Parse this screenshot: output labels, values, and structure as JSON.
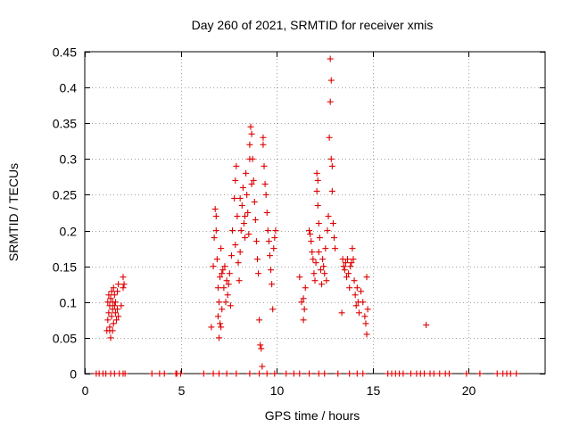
{
  "chart_data": {
    "type": "scatter",
    "title": "Day 260 of 2021, SRMTID for receiver xmis",
    "xlabel": "GPS time / hours",
    "ylabel": "SRMTID / TECUs",
    "xlim": [
      0,
      24
    ],
    "ylim": [
      0,
      0.45
    ],
    "xticks": [
      0,
      5,
      10,
      15,
      20
    ],
    "yticks": [
      0,
      0.05,
      0.1,
      0.15,
      0.2,
      0.25,
      0.3,
      0.35,
      0.4,
      0.45
    ],
    "xtick_labels": [
      "0",
      "5",
      "10",
      "15",
      "20"
    ],
    "ytick_labels": [
      "0",
      "0.05",
      "0.1",
      "0.15",
      "0.2",
      "0.25",
      "0.3",
      "0.35",
      "0.4",
      "0.45"
    ],
    "grid": true,
    "marker": "+",
    "color": "#dd0000",
    "series": [
      {
        "name": "SRMTID",
        "points": [
          [
            0.6,
            0
          ],
          [
            0.75,
            0
          ],
          [
            0.95,
            0
          ],
          [
            1.1,
            0
          ],
          [
            1.35,
            0
          ],
          [
            1.55,
            0
          ],
          [
            1.8,
            0
          ],
          [
            2.0,
            0
          ],
          [
            2.1,
            0
          ],
          [
            3.5,
            0
          ],
          [
            3.9,
            0
          ],
          [
            4.15,
            0
          ],
          [
            4.75,
            0
          ],
          [
            4.8,
            0
          ],
          [
            5.0,
            0
          ],
          [
            6.2,
            0
          ],
          [
            6.7,
            0
          ],
          [
            7.0,
            0
          ],
          [
            7.4,
            0
          ],
          [
            7.9,
            0
          ],
          [
            8.6,
            0
          ],
          [
            9.1,
            0
          ],
          [
            9.5,
            0
          ],
          [
            9.9,
            0
          ],
          [
            10.5,
            0
          ],
          [
            10.9,
            0
          ],
          [
            11.2,
            0
          ],
          [
            11.7,
            0
          ],
          [
            12.2,
            0
          ],
          [
            12.5,
            0
          ],
          [
            13.2,
            0
          ],
          [
            13.8,
            0
          ],
          [
            14.2,
            0
          ],
          [
            14.5,
            0
          ],
          [
            15.8,
            0
          ],
          [
            16.0,
            0
          ],
          [
            16.2,
            0
          ],
          [
            16.4,
            0
          ],
          [
            16.6,
            0
          ],
          [
            17.0,
            0
          ],
          [
            17.3,
            0
          ],
          [
            17.5,
            0
          ],
          [
            17.7,
            0
          ],
          [
            18.0,
            0
          ],
          [
            18.2,
            0
          ],
          [
            18.5,
            0
          ],
          [
            18.8,
            0
          ],
          [
            19.0,
            0
          ],
          [
            19.9,
            0
          ],
          [
            20.6,
            0
          ],
          [
            21.5,
            0
          ],
          [
            21.8,
            0
          ],
          [
            22.0,
            0
          ],
          [
            22.2,
            0
          ],
          [
            22.5,
            0
          ],
          [
            1.15,
            0.06
          ],
          [
            1.2,
            0.075
          ],
          [
            1.2,
            0.1
          ],
          [
            1.25,
            0.085
          ],
          [
            1.25,
            0.11
          ],
          [
            1.3,
            0.065
          ],
          [
            1.3,
            0.095
          ],
          [
            1.35,
            0.05
          ],
          [
            1.35,
            0.105
          ],
          [
            1.4,
            0.08
          ],
          [
            1.4,
            0.115
          ],
          [
            1.45,
            0.09
          ],
          [
            1.45,
            0.1
          ],
          [
            1.5,
            0.07
          ],
          [
            1.5,
            0.12
          ],
          [
            1.55,
            0.095
          ],
          [
            1.55,
            0.11
          ],
          [
            1.6,
            0.085
          ],
          [
            1.6,
            0.1
          ],
          [
            1.65,
            0.075
          ],
          [
            1.7,
            0.09
          ],
          [
            1.7,
            0.115
          ],
          [
            1.75,
            0.125
          ],
          [
            1.75,
            0.08
          ],
          [
            1.9,
            0.095
          ],
          [
            2.0,
            0.12
          ],
          [
            2.0,
            0.135
          ],
          [
            2.05,
            0.125
          ],
          [
            1.3,
            0.06
          ],
          [
            1.45,
            0.06
          ],
          [
            6.6,
            0.065
          ],
          [
            6.7,
            0.15
          ],
          [
            6.75,
            0.19
          ],
          [
            6.8,
            0.23
          ],
          [
            6.85,
            0.22
          ],
          [
            6.85,
            0.2
          ],
          [
            6.9,
            0.16
          ],
          [
            6.95,
            0.12
          ],
          [
            6.95,
            0.08
          ],
          [
            7.0,
            0.05
          ],
          [
            7.0,
            0.1
          ],
          [
            7.05,
            0.07
          ],
          [
            7.05,
            0.135
          ],
          [
            7.1,
            0.065
          ],
          [
            7.1,
            0.175
          ],
          [
            7.15,
            0.14
          ],
          [
            7.15,
            0.09
          ],
          [
            7.2,
            0.145
          ],
          [
            7.25,
            0.12
          ],
          [
            7.3,
            0.15
          ],
          [
            7.35,
            0.1
          ],
          [
            7.4,
            0.13
          ],
          [
            7.45,
            0.11
          ],
          [
            7.5,
            0.125
          ],
          [
            7.55,
            0.14
          ],
          [
            7.6,
            0.095
          ],
          [
            7.65,
            0.165
          ],
          [
            7.7,
            0.2
          ],
          [
            7.8,
            0.245
          ],
          [
            7.85,
            0.27
          ],
          [
            7.9,
            0.29
          ],
          [
            7.95,
            0.22
          ],
          [
            8.0,
            0.155
          ],
          [
            8.05,
            0.13
          ],
          [
            8.1,
            0.17
          ],
          [
            8.15,
            0.2
          ],
          [
            8.2,
            0.235
          ],
          [
            8.25,
            0.26
          ],
          [
            8.3,
            0.21
          ],
          [
            8.35,
            0.19
          ],
          [
            8.4,
            0.28
          ],
          [
            8.45,
            0.25
          ],
          [
            8.5,
            0.225
          ],
          [
            8.55,
            0.195
          ],
          [
            8.6,
            0.32
          ],
          [
            8.65,
            0.345
          ],
          [
            8.7,
            0.335
          ],
          [
            8.7,
            0.265
          ],
          [
            8.75,
            0.3
          ],
          [
            8.8,
            0.27
          ],
          [
            8.85,
            0.24
          ],
          [
            8.9,
            0.215
          ],
          [
            8.95,
            0.185
          ],
          [
            9.0,
            0.16
          ],
          [
            9.05,
            0.14
          ],
          [
            9.1,
            0.075
          ],
          [
            9.15,
            0.04
          ],
          [
            9.2,
            0.035
          ],
          [
            9.25,
            0.01
          ],
          [
            9.3,
            0.33
          ],
          [
            9.35,
            0.29
          ],
          [
            9.4,
            0.265
          ],
          [
            9.45,
            0.25
          ],
          [
            9.5,
            0.225
          ],
          [
            9.55,
            0.2
          ],
          [
            9.6,
            0.185
          ],
          [
            9.65,
            0.165
          ],
          [
            9.7,
            0.145
          ],
          [
            9.75,
            0.125
          ],
          [
            9.8,
            0.09
          ],
          [
            9.85,
            0.175
          ],
          [
            9.9,
            0.19
          ],
          [
            9.95,
            0.2
          ],
          [
            9.3,
            0.32
          ],
          [
            8.6,
            0.3
          ],
          [
            8.35,
            0.22
          ],
          [
            8.1,
            0.245
          ],
          [
            7.85,
            0.18
          ],
          [
            11.2,
            0.135
          ],
          [
            11.3,
            0.1
          ],
          [
            11.4,
            0.105
          ],
          [
            11.4,
            0.075
          ],
          [
            11.45,
            0.09
          ],
          [
            11.5,
            0.12
          ],
          [
            11.7,
            0.2
          ],
          [
            11.75,
            0.195
          ],
          [
            11.8,
            0.185
          ],
          [
            11.85,
            0.17
          ],
          [
            11.9,
            0.16
          ],
          [
            11.95,
            0.14
          ],
          [
            12.0,
            0.13
          ],
          [
            12.05,
            0.155
          ],
          [
            12.1,
            0.255
          ],
          [
            12.15,
            0.235
          ],
          [
            12.2,
            0.21
          ],
          [
            12.2,
            0.17
          ],
          [
            12.25,
            0.19
          ],
          [
            12.3,
            0.145
          ],
          [
            12.35,
            0.125
          ],
          [
            12.4,
            0.16
          ],
          [
            12.45,
            0.15
          ],
          [
            12.5,
            0.14
          ],
          [
            12.55,
            0.175
          ],
          [
            12.6,
            0.13
          ],
          [
            12.65,
            0.2
          ],
          [
            12.7,
            0.22
          ],
          [
            12.75,
            0.33
          ],
          [
            12.8,
            0.38
          ],
          [
            12.8,
            0.44
          ],
          [
            12.85,
            0.41
          ],
          [
            12.85,
            0.3
          ],
          [
            12.9,
            0.29
          ],
          [
            12.9,
            0.255
          ],
          [
            12.95,
            0.21
          ],
          [
            13.0,
            0.19
          ],
          [
            13.05,
            0.175
          ],
          [
            12.1,
            0.28
          ],
          [
            12.15,
            0.27
          ],
          [
            13.4,
            0.085
          ],
          [
            13.45,
            0.16
          ],
          [
            13.5,
            0.15
          ],
          [
            13.55,
            0.145
          ],
          [
            13.6,
            0.155
          ],
          [
            13.65,
            0.135
          ],
          [
            13.7,
            0.16
          ],
          [
            13.75,
            0.14
          ],
          [
            13.8,
            0.12
          ],
          [
            13.85,
            0.15
          ],
          [
            13.9,
            0.155
          ],
          [
            13.95,
            0.175
          ],
          [
            14.0,
            0.16
          ],
          [
            14.05,
            0.13
          ],
          [
            14.1,
            0.11
          ],
          [
            14.15,
            0.095
          ],
          [
            14.2,
            0.12
          ],
          [
            14.25,
            0.1
          ],
          [
            14.3,
            0.085
          ],
          [
            14.4,
            0.115
          ],
          [
            14.5,
            0.1
          ],
          [
            14.6,
            0.08
          ],
          [
            14.65,
            0.07
          ],
          [
            14.7,
            0.055
          ],
          [
            14.75,
            0.09
          ],
          [
            14.7,
            0.135
          ],
          [
            17.8,
            0.068
          ]
        ]
      }
    ]
  }
}
